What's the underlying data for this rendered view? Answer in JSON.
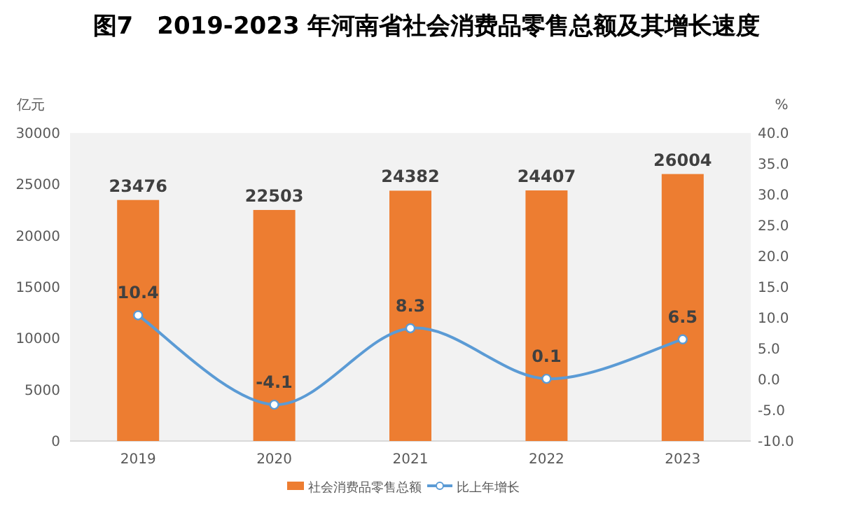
{
  "chart_data": {
    "type": "bar",
    "title": "图7　2019-2023 年河南省社会消费品零售总额及其增长速度",
    "ylabel": "亿元",
    "y2label": "%",
    "categories": [
      "2019",
      "2020",
      "2021",
      "2022",
      "2023"
    ],
    "series": [
      {
        "name": "社会消费品零售总额",
        "color": "#ed7d31",
        "values": [
          23476,
          22503,
          24382,
          24407,
          26004
        ]
      },
      {
        "name": "比上年增长",
        "type": "line",
        "axis": "y2",
        "color": "#5b9bd5",
        "marker": "circle",
        "values": [
          10.4,
          -4.1,
          8.3,
          0.1,
          6.5
        ]
      }
    ],
    "ylim": [
      0,
      30000
    ],
    "yticks": [
      0,
      5000,
      10000,
      15000,
      20000,
      25000,
      30000
    ],
    "y2lim": [
      -10,
      40
    ],
    "y2ticks": [
      {
        "value": -10,
        "label": "-10.0"
      },
      {
        "value": -5,
        "label": "-5.0"
      },
      {
        "value": 0,
        "label": "0.0"
      },
      {
        "value": 5,
        "label": "5.0"
      },
      {
        "value": 10,
        "label": "10.0"
      },
      {
        "value": 15,
        "label": "15.0"
      },
      {
        "value": 20,
        "label": "20.0"
      },
      {
        "value": 25,
        "label": "25.0"
      },
      {
        "value": 30,
        "label": "30.0"
      },
      {
        "value": 35,
        "label": "35.0"
      },
      {
        "value": 40,
        "label": "40.0"
      }
    ],
    "data_labels": true,
    "legend": "bottom",
    "grid": false
  }
}
